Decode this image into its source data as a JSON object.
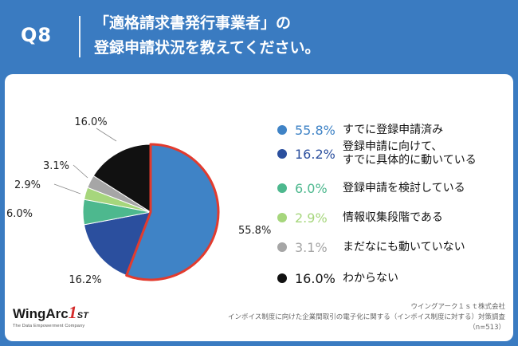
{
  "header": {
    "qnum": "Q8",
    "title_line1": "「適格請求書発行事業者」の",
    "title_line2": "登録申請状況を教えてください。"
  },
  "chart_data": {
    "type": "pie",
    "categories": [
      "すでに登録申請済み",
      "登録申請に向けて、すでに具体的に動いている",
      "登録申請を検討している",
      "情報収集段階である",
      "まだなにも動いていない",
      "わからない"
    ],
    "values": [
      55.8,
      16.2,
      6.0,
      2.9,
      3.1,
      16.0
    ],
    "value_labels": [
      "55.8%",
      "16.2%",
      "6.0%",
      "2.9%",
      "3.1%",
      "16.0%"
    ],
    "colors": [
      "#3f83c6",
      "#2b4f9e",
      "#4db88e",
      "#a6d67c",
      "#a6a6a6",
      "#111111"
    ],
    "highlight": {
      "index": 0,
      "color": "#e23b2e"
    },
    "start": "12 o'clock",
    "direction": "clockwise",
    "legend_placement": "right"
  },
  "legend": {
    "items": [
      {
        "pct": "55.8%",
        "line1": "すでに登録申請済み",
        "line2": "",
        "color": "#3f83c6",
        "pct_color": "#3f83c6"
      },
      {
        "pct": "16.2%",
        "line1": "登録申請に向けて、",
        "line2": "すでに具体的に動いている",
        "color": "#2b4f9e",
        "pct_color": "#2b4f9e"
      },
      {
        "pct": "6.0%",
        "line1": "登録申請を検討している",
        "line2": "",
        "color": "#4db88e",
        "pct_color": "#4db88e"
      },
      {
        "pct": "2.9%",
        "line1": "情報収集段階である",
        "line2": "",
        "color": "#a6d67c",
        "pct_color": "#a6d67c"
      },
      {
        "pct": "3.1%",
        "line1": "まだなにも動いていない",
        "line2": "",
        "color": "#a6a6a6",
        "pct_color": "#a6a6a6"
      },
      {
        "pct": "16.0%",
        "line1": "わからない",
        "line2": "",
        "color": "#111111",
        "pct_color": "#111111"
      }
    ]
  },
  "logo": {
    "name": "WingArc",
    "mark": "1",
    "mark_suffix": "ST",
    "tagline": "The Data Empowerment Company"
  },
  "source": {
    "line1": "ウイングアーク１ｓｔ株式会社",
    "line2": "インボイス制度に向けた企業間取引の電子化に関する（インボイス制度に対する）対策調査",
    "line3": "（n=513）"
  }
}
